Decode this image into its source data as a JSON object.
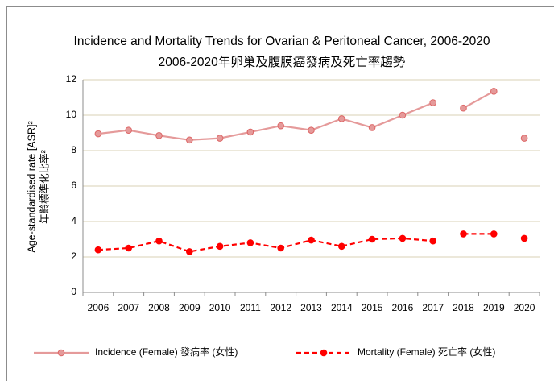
{
  "chart_data": {
    "type": "line",
    "title": "Incidence and Mortality Trends for Ovarian & Peritoneal Cancer, 2006-2020",
    "subtitle": "2006-2020年卵巢及腹膜癌發病及死亡率趨勢",
    "y_label": [
      "Age-standardised rate [ASR]²",
      "年齡標準化比率²"
    ],
    "categories": [
      "2006",
      "2007",
      "2008",
      "2009",
      "2010",
      "2011",
      "2012",
      "2013",
      "2014",
      "2015",
      "2016",
      "2017",
      "2018",
      "2019",
      "2020"
    ],
    "break_after": [
      "2017",
      "2019"
    ],
    "series": [
      {
        "name": "Incidence (Female) 發病率 (女性)",
        "color": "#e59a9a",
        "line_style": "solid",
        "values": [
          8.95,
          9.15,
          8.85,
          8.6,
          8.7,
          9.05,
          9.4,
          9.15,
          9.8,
          9.3,
          10.0,
          10.7,
          10.4,
          11.35,
          8.7
        ]
      },
      {
        "name": "Mortality (Female) 死亡率 (女性)",
        "color": "#ff0000",
        "line_style": "dashed",
        "values": [
          2.4,
          2.5,
          2.9,
          2.3,
          2.6,
          2.8,
          2.5,
          2.95,
          2.6,
          3.0,
          3.05,
          2.9,
          3.3,
          3.3,
          3.05
        ]
      }
    ],
    "ylim": [
      0,
      12
    ],
    "yticks": [
      0,
      2,
      4,
      6,
      8,
      10,
      12
    ],
    "grid": true,
    "legend": "bottom"
  }
}
